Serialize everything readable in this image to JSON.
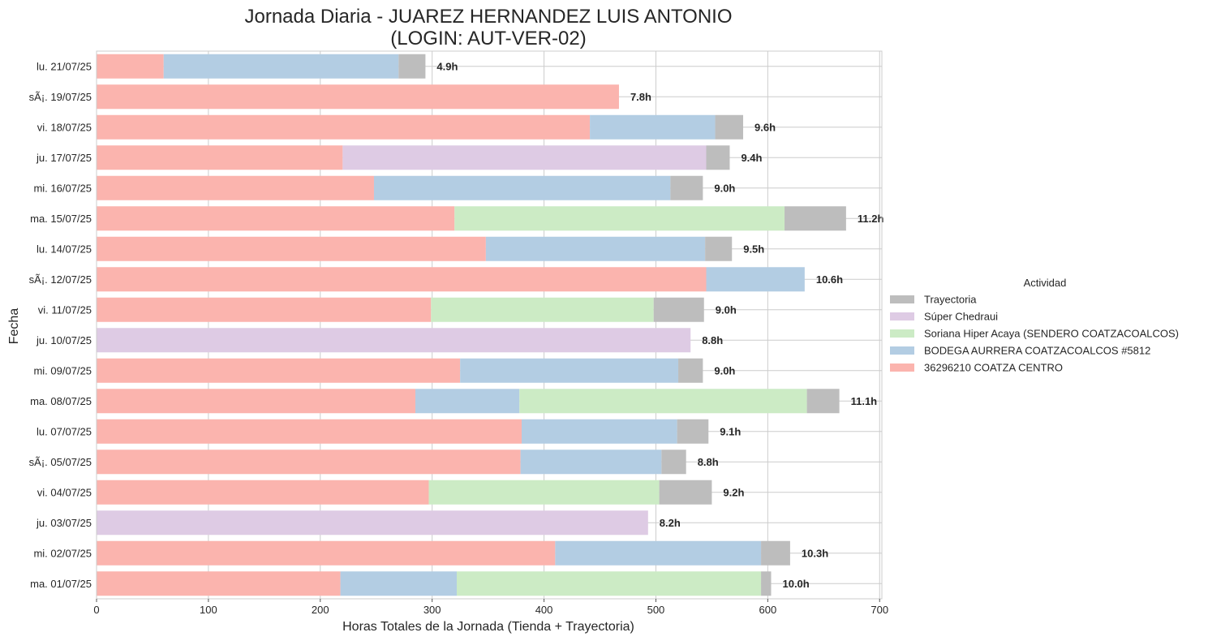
{
  "chart_data": {
    "type": "bar",
    "orientation": "horizontal",
    "stacked": true,
    "title_line1": "Jornada Diaria - JUAREZ HERNANDEZ LUIS ANTONIO",
    "title_line2": "(LOGIN: AUT-VER-02)",
    "xlabel": "Horas Totales de la Jornada (Tienda + Trayectoria)",
    "ylabel": "Fecha",
    "xlim": [
      0,
      702
    ],
    "xticks": [
      0,
      100,
      200,
      300,
      400,
      500,
      600,
      700
    ],
    "grid": true,
    "legend_placement": "right",
    "legend_title": "Actividad",
    "categories": [
      "lu. 21/07/25",
      "sÃ¡. 19/07/25",
      "vi. 18/07/25",
      "ju. 17/07/25",
      "mi. 16/07/25",
      "ma. 15/07/25",
      "lu. 14/07/25",
      "sÃ¡. 12/07/25",
      "vi. 11/07/25",
      "ju. 10/07/25",
      "mi. 09/07/25",
      "ma. 08/07/25",
      "lu. 07/07/25",
      "sÃ¡. 05/07/25",
      "vi. 04/07/25",
      "ju. 03/07/25",
      "mi. 02/07/25",
      "ma. 01/07/25"
    ],
    "series": [
      {
        "name": "36296210 COATZA CENTRO",
        "color": "#fbb4ae",
        "values": [
          60,
          467,
          441,
          220,
          248,
          320,
          348,
          545,
          299,
          0,
          325,
          285,
          380,
          379,
          297,
          0,
          410,
          218
        ]
      },
      {
        "name": "BODEGA AURRERA COATZACOALCOS #5812",
        "color": "#b3cde3",
        "values": [
          210,
          0,
          112,
          0,
          265,
          0,
          196,
          88,
          0,
          0,
          195,
          93,
          139,
          126,
          0,
          0,
          184,
          104
        ]
      },
      {
        "name": "Soriana Hiper Acaya (SENDERO COATZACOALCOS)",
        "color": "#ccebc5",
        "values": [
          0,
          0,
          0,
          0,
          0,
          295,
          0,
          0,
          199,
          0,
          0,
          257,
          0,
          0,
          206,
          0,
          0,
          272
        ]
      },
      {
        "name": "Súper Chedraui",
        "color": "#decbe4",
        "values": [
          0,
          0,
          0,
          325,
          0,
          0,
          0,
          0,
          0,
          531,
          0,
          0,
          0,
          0,
          0,
          493,
          0,
          0
        ]
      },
      {
        "name": "Trayectoria",
        "color": "#bdbdbd",
        "values": [
          24,
          0,
          25,
          21,
          29,
          55,
          24,
          0,
          45,
          0,
          22,
          29,
          28,
          22,
          47,
          0,
          26,
          9
        ]
      }
    ],
    "totals_labels": [
      "4.9h",
      "7.8h",
      "9.6h",
      "9.4h",
      "9.0h",
      "11.2h",
      "9.5h",
      "10.6h",
      "9.0h",
      "8.8h",
      "9.0h",
      "11.1h",
      "9.1h",
      "8.8h",
      "9.2h",
      "8.2h",
      "10.3h",
      "10.0h"
    ],
    "legend_order": [
      4,
      3,
      2,
      1,
      0
    ]
  }
}
